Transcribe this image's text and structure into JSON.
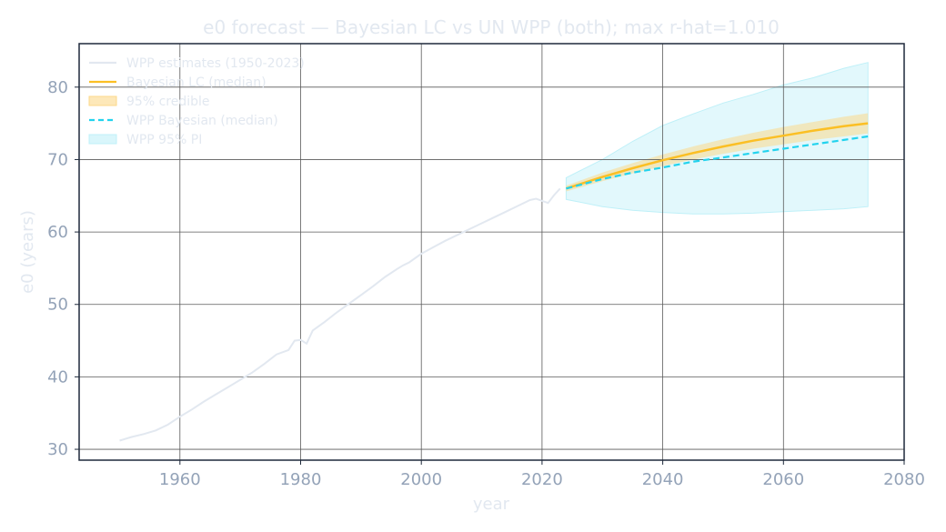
{
  "chart_data": {
    "type": "line",
    "title": "e0 forecast — Bayesian LC vs UN WPP (both); max r-hat=1.010",
    "xlabel": "year",
    "ylabel": "e0 (years)",
    "xlim": [
      1943.3,
      2080
    ],
    "ylim": [
      28.5,
      86
    ],
    "xticks": [
      1960,
      1980,
      2000,
      2020,
      2040,
      2060,
      2080
    ],
    "yticks": [
      30,
      40,
      50,
      60,
      70,
      80
    ],
    "grid": true,
    "legend_position": "top-left",
    "colors": {
      "estimates": "#e2e8f0",
      "bayes_lc": "#fbbf24",
      "bayes_band": "#fcd98a",
      "wpp_bayes": "#22d3ee",
      "wpp_band": "#bff0f8",
      "axes": "#1e293b"
    },
    "legend": [
      {
        "key": "estimates",
        "label": "WPP estimates (1950-2023)"
      },
      {
        "key": "bayes_lc",
        "label": "Bayesian LC (median)"
      },
      {
        "key": "bayes_band",
        "label": "95% credible"
      },
      {
        "key": "wpp_bayes",
        "label": "WPP Bayesian (median)"
      },
      {
        "key": "wpp_band",
        "label": "WPP 95% PI"
      }
    ],
    "series": [
      {
        "name": "WPP estimates (1950-2023)",
        "x": [
          1950,
          1952,
          1954,
          1956,
          1958,
          1960,
          1962,
          1964,
          1966,
          1968,
          1970,
          1972,
          1974,
          1976,
          1978,
          1979,
          1980,
          1981,
          1982,
          1984,
          1986,
          1988,
          1990,
          1992,
          1994,
          1996,
          1997,
          1998,
          2000,
          2002,
          2004,
          2006,
          2008,
          2010,
          2012,
          2014,
          2016,
          2018,
          2019,
          2020,
          2021,
          2022,
          2023
        ],
        "y": [
          31.2,
          31.7,
          32.1,
          32.6,
          33.4,
          34.5,
          35.5,
          36.6,
          37.6,
          38.6,
          39.6,
          40.6,
          41.8,
          43.1,
          43.7,
          45.0,
          45.1,
          44.6,
          46.4,
          47.6,
          48.9,
          50.1,
          51.3,
          52.5,
          53.8,
          54.9,
          55.4,
          55.8,
          57.0,
          57.9,
          58.8,
          59.6,
          60.4,
          61.2,
          62.0,
          62.8,
          63.6,
          64.4,
          64.6,
          64.3,
          64.0,
          65.1,
          66.0
        ]
      },
      {
        "name": "Bayesian LC (median)",
        "x": [
          2024,
          2030,
          2035,
          2040,
          2045,
          2050,
          2055,
          2060,
          2065,
          2070,
          2074
        ],
        "y": [
          66.0,
          67.6,
          68.8,
          69.9,
          70.9,
          71.8,
          72.6,
          73.3,
          74.0,
          74.6,
          75.0
        ],
        "lower": [
          65.6,
          67.0,
          68.1,
          69.1,
          70.0,
          70.8,
          71.5,
          72.1,
          72.7,
          73.2,
          73.6
        ],
        "upper": [
          66.4,
          68.2,
          69.5,
          70.7,
          71.8,
          72.8,
          73.7,
          74.5,
          75.2,
          75.9,
          76.4
        ]
      },
      {
        "name": "WPP Bayesian (median)",
        "x": [
          2024,
          2030,
          2035,
          2040,
          2045,
          2050,
          2055,
          2060,
          2065,
          2070,
          2074
        ],
        "y": [
          66.0,
          67.3,
          68.2,
          68.9,
          69.7,
          70.3,
          70.9,
          71.5,
          72.1,
          72.7,
          73.2
        ],
        "lower": [
          64.5,
          63.5,
          63.0,
          62.7,
          62.5,
          62.5,
          62.6,
          62.8,
          63.0,
          63.2,
          63.5
        ],
        "upper": [
          67.5,
          70.0,
          72.5,
          74.7,
          76.3,
          77.8,
          79.0,
          80.3,
          81.3,
          82.6,
          83.4
        ]
      }
    ]
  }
}
